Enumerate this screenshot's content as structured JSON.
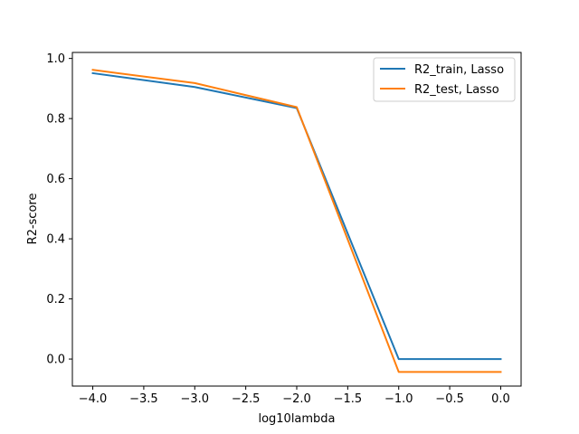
{
  "chart_data": {
    "type": "line",
    "title": "",
    "xlabel": "log10lambda",
    "ylabel": "R2-score",
    "xlim": [
      -4.2,
      0.2
    ],
    "ylim": [
      -0.09,
      1.02
    ],
    "xticks": [
      -4.0,
      -3.5,
      -3.0,
      -2.5,
      -2.0,
      -1.5,
      -1.0,
      -0.5,
      0.0
    ],
    "xtick_labels": [
      "−4.0",
      "−3.5",
      "−3.0",
      "−2.5",
      "−2.0",
      "−1.5",
      "−1.0",
      "−0.5",
      "0.0"
    ],
    "yticks": [
      0.0,
      0.2,
      0.4,
      0.6,
      0.8,
      1.0
    ],
    "ytick_labels": [
      "0.0",
      "0.2",
      "0.4",
      "0.6",
      "0.8",
      "1.0"
    ],
    "grid": false,
    "legend_position": "upper right",
    "x": [
      -4.0,
      -3.0,
      -2.0,
      -1.0,
      0.0
    ],
    "series": [
      {
        "name": "R2_train, Lasso",
        "color": "#1f77b4",
        "values": [
          0.951,
          0.905,
          0.835,
          0.0,
          0.0
        ]
      },
      {
        "name": "R2_test, Lasso",
        "color": "#ff7f0e",
        "values": [
          0.962,
          0.918,
          0.838,
          -0.043,
          -0.043
        ]
      }
    ]
  }
}
